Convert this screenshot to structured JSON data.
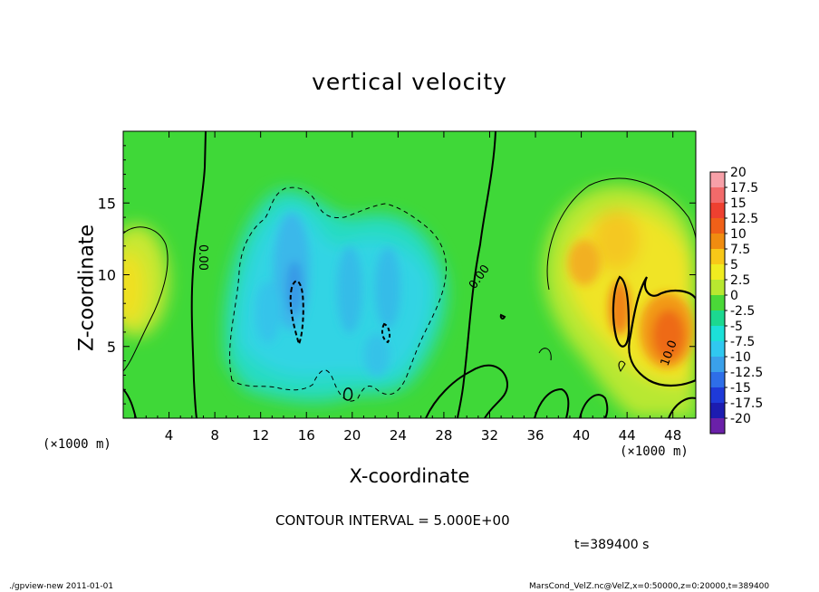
{
  "chart_data": {
    "type": "heatmap",
    "title": "vertical velocity",
    "xlabel": "X-coordinate",
    "ylabel": "Z-coordinate",
    "x_unit_note": "(×1000 m)",
    "x_ticks": [
      4,
      8,
      12,
      16,
      20,
      24,
      28,
      32,
      36,
      40,
      44,
      48
    ],
    "y_ticks": [
      5,
      10,
      15
    ],
    "xlim": [
      0,
      50
    ],
    "ylim": [
      0,
      20
    ],
    "colorbar": {
      "labels": [
        "20",
        "17.5",
        "15",
        "12.5",
        "10",
        "7.5",
        "5",
        "2.5",
        "0",
        "-2.5",
        "-5",
        "-7.5",
        "-10",
        "-12.5",
        "-15",
        "-17.5",
        "-20"
      ],
      "colors": [
        "#f7a0a8",
        "#f26a6a",
        "#ee4030",
        "#f06018",
        "#f08c10",
        "#f8c818",
        "#f0ec20",
        "#b8e830",
        "#4ad838",
        "#1cd890",
        "#1ce0d8",
        "#30c8f0",
        "#3aa0ea",
        "#2e6ee8",
        "#1e3ad8",
        "#1c1cb0",
        "#6a20a8"
      ]
    },
    "contour_labels": [
      "0.00",
      "0.00",
      "10.0"
    ],
    "contour_interval": "CONTOUR INTERVAL = 5.000E+00",
    "time": "t=389400  s",
    "features": [
      {
        "kind": "updraft",
        "x": [
          0,
          4
        ],
        "z": [
          5,
          13
        ],
        "w": 5
      },
      {
        "kind": "downdraft",
        "x": [
          12,
          28
        ],
        "z": [
          2,
          16
        ],
        "w": -7.5
      },
      {
        "kind": "updraft",
        "x": [
          37,
          50
        ],
        "z": [
          1,
          15
        ],
        "w": 10
      }
    ]
  },
  "footer": {
    "left": "./gpview-new  2011-01-01",
    "right": "MarsCond_VelZ.nc@VelZ,x=0:50000,z=0:20000,t=389400"
  }
}
